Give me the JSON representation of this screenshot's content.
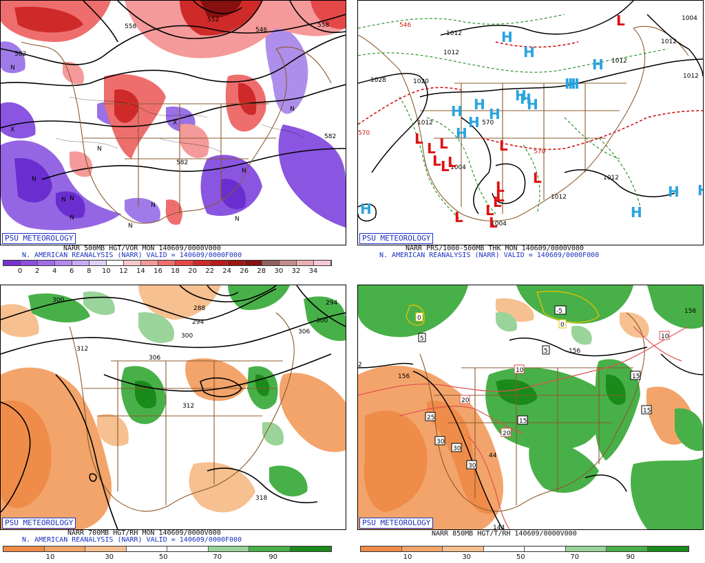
{
  "watermark": "PSU METEOROLOGY",
  "panels": [
    {
      "title": "NARR 500MB HGT/VOR MON 140609/0000V000",
      "subtitle": "N. AMERICAN REANALYSIS (NARR) VALID = 140609/0000F000",
      "colorbar": {
        "colors": [
          "#7a2fd0",
          "#8e4ee0",
          "#a06ae8",
          "#b48af0",
          "#c8aaf4",
          "#dfd0f8",
          "#ffffff",
          "#f8c8c8",
          "#f49a9a",
          "#ee6e6e",
          "#e44848",
          "#cf2a2a",
          "#b81c1c",
          "#9c1414",
          "#861010",
          "#8f6060",
          "#c48c8c",
          "#e8b0b0",
          "#f5c8d6"
        ],
        "ticks": [
          "0",
          "2",
          "4",
          "6",
          "8",
          "10",
          "12",
          "14",
          "16",
          "18",
          "20",
          "22",
          "24",
          "26",
          "28",
          "30",
          "32",
          "34"
        ]
      },
      "contour_labels": [
        "582",
        "558",
        "552",
        "546",
        "558",
        "582",
        "582"
      ],
      "markers": [
        "N",
        "N",
        "N",
        "N",
        "N",
        "N",
        "N",
        "N",
        "X",
        "X",
        "N",
        "N",
        "N"
      ]
    },
    {
      "title": "NARR PRS/1000-500MB THK MON 140609/0000V000",
      "subtitle": "N. AMERICAN REANALYSIS (NARR) VALID = 140609/0000F000",
      "contour_labels": [
        "1028",
        "1020",
        "1012",
        "1012",
        "1012",
        "1012",
        "1012",
        "1012",
        "1004",
        "1004",
        "1012",
        "1012",
        "546",
        "570",
        "570",
        "570",
        "1004"
      ],
      "highs": [
        "H",
        "H",
        "H",
        "H",
        "H",
        "H",
        "H",
        "H",
        "H",
        "H",
        "H",
        "H",
        "H",
        "H",
        "H",
        "H",
        "H"
      ],
      "lows": [
        "L",
        "L",
        "L",
        "L",
        "L",
        "L",
        "L",
        "L",
        "L",
        "L",
        "L",
        "L",
        "L",
        "L",
        "L"
      ]
    },
    {
      "title": "NARR 700MB HGT/RH MON 140609/0000V000",
      "subtitle": "N. AMERICAN REANALYSIS (NARR) VALID = 140609/0000F000",
      "colorbar": {
        "colors": [
          "#ef8c4a",
          "#f3a46a",
          "#f7c090",
          "#ffffff",
          "#ffffff",
          "#9ad49a",
          "#48b048",
          "#1a8a1a"
        ],
        "ticks": [
          "10",
          "30",
          "50",
          "70",
          "90"
        ]
      },
      "contour_labels": [
        "300",
        "288",
        "294",
        "300",
        "306",
        "294",
        "300",
        "306",
        "312",
        "318",
        "312"
      ]
    },
    {
      "title": "NARR 850MB HGT/T/RH 140609/0000V000",
      "colorbar": {
        "colors": [
          "#ef8c4a",
          "#f3a46a",
          "#f7c090",
          "#ffffff",
          "#ffffff",
          "#9ad49a",
          "#48b048",
          "#1a8a1a"
        ],
        "ticks": [
          "10",
          "30",
          "50",
          "70",
          "90"
        ]
      },
      "contour_labels": [
        "156",
        "156",
        "156",
        "144",
        "2"
      ],
      "temp_labels": [
        "0",
        "0",
        "-5",
        "5",
        "5",
        "10",
        "10",
        "15",
        "15",
        "15",
        "20",
        "20",
        "25",
        "30",
        "30",
        "30",
        "44"
      ]
    }
  ]
}
